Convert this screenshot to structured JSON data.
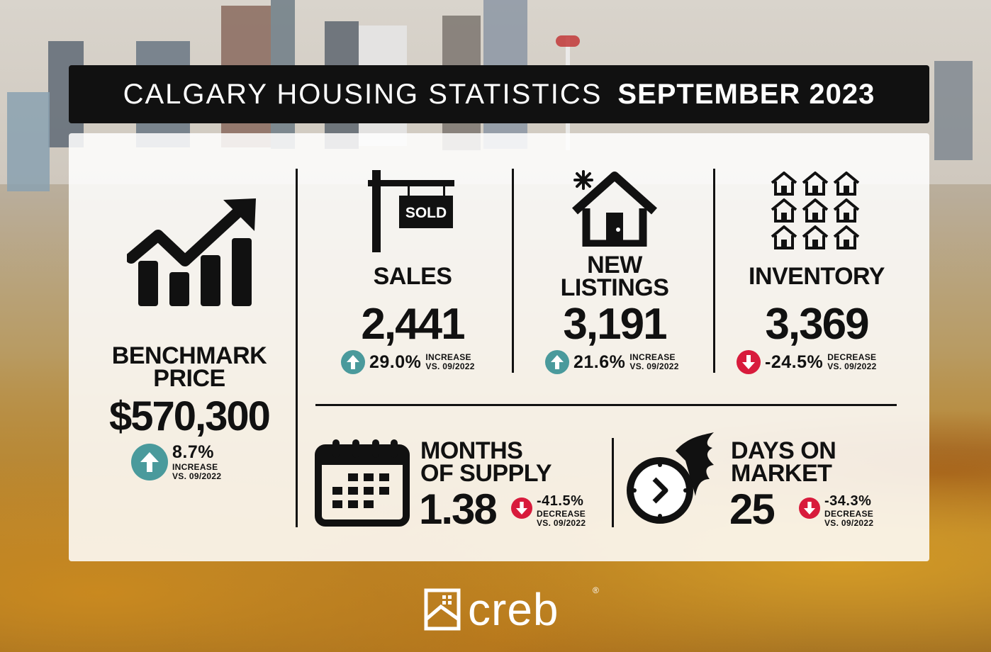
{
  "header": {
    "title_light": "CALGARY HOUSING STATISTICS",
    "title_bold": "SEPTEMBER 2023"
  },
  "benchmark": {
    "label_line1": "BENCHMARK",
    "label_line2": "PRICE",
    "value": "$570,300",
    "change_pct": "8.7%",
    "change_word": "INCREASE",
    "change_vs": "VS. 09/2022",
    "direction": "up",
    "icon": "trend-chart-icon"
  },
  "sales": {
    "label": "SALES",
    "value": "2,441",
    "change_pct": "29.0%",
    "change_word": "INCREASE",
    "change_vs": "VS. 09/2022",
    "direction": "up",
    "icon": "sold-sign-icon",
    "sign_text": "SOLD"
  },
  "new_listings": {
    "label_line1": "NEW",
    "label_line2": "LISTINGS",
    "value": "3,191",
    "change_pct": "21.6%",
    "change_word": "INCREASE",
    "change_vs": "VS. 09/2022",
    "direction": "up",
    "icon": "new-house-icon"
  },
  "inventory": {
    "label": "INVENTORY",
    "value": "3,369",
    "change_pct": "-24.5%",
    "change_word": "DECREASE",
    "change_vs": "VS. 09/2022",
    "direction": "down",
    "icon": "houses-grid-icon"
  },
  "months_supply": {
    "label_line1": "MONTHS",
    "label_line2": "OF SUPPLY",
    "value": "1.38",
    "change_pct": "-41.5%",
    "change_word": "DECREASE",
    "change_vs": "VS. 09/2022",
    "direction": "down",
    "icon": "calendar-icon"
  },
  "days_on_market": {
    "label_line1": "DAYS ON",
    "label_line2": "MARKET",
    "value": "25",
    "change_pct": "-34.3%",
    "change_word": "DECREASE",
    "change_vs": "VS. 09/2022",
    "direction": "down",
    "icon": "fast-clock-icon"
  },
  "footer": {
    "logo_text": "creb",
    "registered": "®"
  },
  "colors": {
    "up": "#4a9a9c",
    "down": "#d81b3c",
    "ink": "#111111"
  }
}
